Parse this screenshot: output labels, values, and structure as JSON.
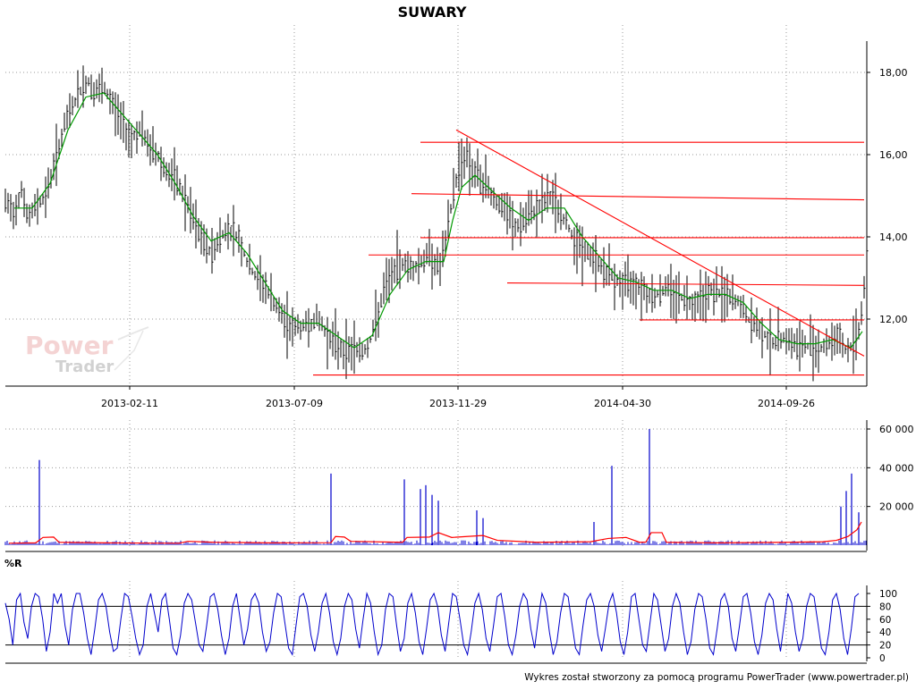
{
  "chart_data": [
    {
      "type": "line",
      "title": "SUWARY",
      "subtype": "candlestick-with-moving-average",
      "x_tick_labels": [
        "2013-02-11",
        "2013-07-09",
        "2013-11-29",
        "2014-04-30",
        "2014-09-26"
      ],
      "y_tick_labels": [
        "12,00",
        "14,00",
        "16,00",
        "18,00"
      ],
      "y_ticks": [
        12,
        14,
        16,
        18
      ],
      "ylim": [
        10.3,
        18.8
      ],
      "grid": true,
      "colors": {
        "price": "#000000",
        "moving_average": "#009900",
        "trendlines": "#ff0000"
      },
      "price_path": [
        [
          0,
          14.8
        ],
        [
          10,
          14.6
        ],
        [
          18,
          15.2
        ],
        [
          25,
          14.4
        ],
        [
          35,
          14.8
        ],
        [
          45,
          15.0
        ],
        [
          55,
          15.8
        ],
        [
          65,
          16.6
        ],
        [
          75,
          17.2
        ],
        [
          85,
          17.6
        ],
        [
          92,
          17.8
        ],
        [
          100,
          17.5
        ],
        [
          110,
          17.6
        ],
        [
          120,
          17.2
        ],
        [
          130,
          16.8
        ],
        [
          140,
          16.4
        ],
        [
          150,
          16.6
        ],
        [
          160,
          16.2
        ],
        [
          170,
          16.0
        ],
        [
          180,
          15.6
        ],
        [
          195,
          15.2
        ],
        [
          210,
          14.4
        ],
        [
          220,
          13.9
        ],
        [
          230,
          13.6
        ],
        [
          240,
          14.0
        ],
        [
          250,
          14.2
        ],
        [
          260,
          14.0
        ],
        [
          270,
          13.4
        ],
        [
          280,
          13.0
        ],
        [
          290,
          12.8
        ],
        [
          300,
          12.4
        ],
        [
          310,
          12.0
        ],
        [
          320,
          11.8
        ],
        [
          330,
          11.8
        ],
        [
          340,
          11.9
        ],
        [
          350,
          12.0
        ],
        [
          360,
          11.6
        ],
        [
          370,
          11.4
        ],
        [
          380,
          11.2
        ],
        [
          390,
          11.3
        ],
        [
          400,
          11.2
        ],
        [
          408,
          11.5
        ],
        [
          415,
          12.0
        ],
        [
          425,
          12.8
        ],
        [
          435,
          13.2
        ],
        [
          445,
          13.4
        ],
        [
          455,
          13.2
        ],
        [
          465,
          13.4
        ],
        [
          475,
          13.6
        ],
        [
          485,
          13.2
        ],
        [
          492,
          13.8
        ],
        [
          500,
          15.0
        ],
        [
          508,
          15.8
        ],
        [
          515,
          16.0
        ],
        [
          522,
          15.6
        ],
        [
          530,
          15.4
        ],
        [
          540,
          15.2
        ],
        [
          550,
          14.8
        ],
        [
          560,
          14.6
        ],
        [
          570,
          14.2
        ],
        [
          580,
          14.4
        ],
        [
          590,
          14.6
        ],
        [
          600,
          14.8
        ],
        [
          610,
          15.0
        ],
        [
          620,
          14.6
        ],
        [
          630,
          14.2
        ],
        [
          640,
          13.8
        ],
        [
          650,
          13.6
        ],
        [
          660,
          13.4
        ],
        [
          670,
          13.2
        ],
        [
          680,
          13.0
        ],
        [
          690,
          12.8
        ],
        [
          700,
          12.9
        ],
        [
          710,
          12.8
        ],
        [
          720,
          12.6
        ],
        [
          730,
          12.6
        ],
        [
          740,
          12.8
        ],
        [
          750,
          12.6
        ],
        [
          760,
          12.5
        ],
        [
          770,
          12.4
        ],
        [
          780,
          12.6
        ],
        [
          790,
          12.7
        ],
        [
          800,
          12.6
        ],
        [
          810,
          12.5
        ],
        [
          820,
          12.4
        ],
        [
          830,
          12.0
        ],
        [
          840,
          11.8
        ],
        [
          850,
          11.6
        ],
        [
          860,
          11.4
        ],
        [
          870,
          11.6
        ],
        [
          880,
          11.4
        ],
        [
          890,
          11.3
        ],
        [
          900,
          11.4
        ],
        [
          910,
          11.3
        ],
        [
          920,
          11.4
        ],
        [
          930,
          11.6
        ],
        [
          940,
          11.2
        ],
        [
          948,
          11.4
        ],
        [
          955,
          11.8
        ],
        [
          960,
          12.8
        ],
        [
          963,
          13.6
        ]
      ],
      "moving_average_path": [
        [
          10,
          14.7
        ],
        [
          30,
          14.7
        ],
        [
          50,
          15.3
        ],
        [
          70,
          16.6
        ],
        [
          90,
          17.4
        ],
        [
          110,
          17.5
        ],
        [
          130,
          17.0
        ],
        [
          150,
          16.5
        ],
        [
          170,
          16.0
        ],
        [
          190,
          15.3
        ],
        [
          210,
          14.5
        ],
        [
          230,
          13.9
        ],
        [
          250,
          14.1
        ],
        [
          270,
          13.6
        ],
        [
          290,
          12.9
        ],
        [
          310,
          12.2
        ],
        [
          330,
          11.9
        ],
        [
          350,
          11.9
        ],
        [
          370,
          11.6
        ],
        [
          390,
          11.3
        ],
        [
          410,
          11.6
        ],
        [
          430,
          12.6
        ],
        [
          450,
          13.2
        ],
        [
          470,
          13.4
        ],
        [
          490,
          13.4
        ],
        [
          500,
          14.4
        ],
        [
          510,
          15.2
        ],
        [
          525,
          15.5
        ],
        [
          545,
          15.1
        ],
        [
          565,
          14.7
        ],
        [
          585,
          14.4
        ],
        [
          605,
          14.7
        ],
        [
          625,
          14.7
        ],
        [
          645,
          14.0
        ],
        [
          665,
          13.5
        ],
        [
          685,
          13.0
        ],
        [
          705,
          12.9
        ],
        [
          725,
          12.7
        ],
        [
          745,
          12.7
        ],
        [
          765,
          12.5
        ],
        [
          785,
          12.6
        ],
        [
          805,
          12.6
        ],
        [
          825,
          12.4
        ],
        [
          845,
          11.9
        ],
        [
          865,
          11.5
        ],
        [
          885,
          11.4
        ],
        [
          905,
          11.4
        ],
        [
          925,
          11.5
        ],
        [
          945,
          11.3
        ],
        [
          958,
          11.7
        ]
      ],
      "trendlines": [
        {
          "from": [
            470,
            16.3
          ],
          "to": [
            966,
            16.3
          ]
        },
        {
          "from": [
            460,
            15.05
          ],
          "to": [
            966,
            14.9
          ]
        },
        {
          "from": [
            470,
            13.98
          ],
          "to": [
            966,
            13.98
          ]
        },
        {
          "from": [
            412,
            13.56
          ],
          "to": [
            966,
            13.56
          ]
        },
        {
          "from": [
            567,
            12.88
          ],
          "to": [
            966,
            12.82
          ]
        },
        {
          "from": [
            715,
            11.98
          ],
          "to": [
            966,
            11.98
          ]
        },
        {
          "from": [
            350,
            10.64
          ],
          "to": [
            966,
            10.64
          ]
        },
        {
          "from": [
            510,
            16.6
          ],
          "to": [
            966,
            11.1
          ]
        }
      ]
    },
    {
      "type": "bar",
      "name": "volume",
      "y_tick_labels": [
        "20 000",
        "40 000",
        "60 000"
      ],
      "y_ticks": [
        20000,
        40000,
        60000
      ],
      "ylim": [
        0,
        60000
      ],
      "grid": true,
      "colors": {
        "bars": "#0000cc",
        "average": "#ff0000"
      },
      "spikes": [
        [
          44,
          44000
        ],
        [
          370,
          37000
        ],
        [
          452,
          34000
        ],
        [
          470,
          29000
        ],
        [
          476,
          31000
        ],
        [
          483,
          26000
        ],
        [
          490,
          23000
        ],
        [
          533,
          18000
        ],
        [
          540,
          14000
        ],
        [
          664,
          12000
        ],
        [
          684,
          41000
        ],
        [
          726,
          60000
        ],
        [
          940,
          20000
        ],
        [
          946,
          28000
        ],
        [
          952,
          37000
        ],
        [
          960,
          17000
        ]
      ],
      "average_path": [
        [
          10,
          1000
        ],
        [
          40,
          1200
        ],
        [
          48,
          4000
        ],
        [
          60,
          4200
        ],
        [
          66,
          1500
        ],
        [
          120,
          1200
        ],
        [
          200,
          1000
        ],
        [
          210,
          2000
        ],
        [
          240,
          1500
        ],
        [
          300,
          1200
        ],
        [
          370,
          1300
        ],
        [
          375,
          4500
        ],
        [
          385,
          4200
        ],
        [
          392,
          2000
        ],
        [
          450,
          1500
        ],
        [
          455,
          4000
        ],
        [
          480,
          4200
        ],
        [
          490,
          6500
        ],
        [
          505,
          4000
        ],
        [
          540,
          5000
        ],
        [
          556,
          2500
        ],
        [
          600,
          1500
        ],
        [
          660,
          1800
        ],
        [
          680,
          3500
        ],
        [
          700,
          4000
        ],
        [
          715,
          1500
        ],
        [
          722,
          1600
        ],
        [
          728,
          6500
        ],
        [
          740,
          6500
        ],
        [
          745,
          1500
        ],
        [
          800,
          1200
        ],
        [
          880,
          1500
        ],
        [
          920,
          1800
        ],
        [
          935,
          2500
        ],
        [
          948,
          4500
        ],
        [
          958,
          8000
        ],
        [
          963,
          12000
        ]
      ]
    },
    {
      "type": "line",
      "name": "%R",
      "title": "%R",
      "y_tick_labels": [
        "0",
        "20",
        "40",
        "60",
        "80",
        "100"
      ],
      "y_ticks": [
        0,
        20,
        40,
        60,
        80,
        100
      ],
      "ylim": [
        0,
        100
      ],
      "reference_lines": [
        20,
        80
      ],
      "colors": {
        "line": "#0000cc"
      },
      "values": [
        85,
        60,
        20,
        90,
        100,
        55,
        30,
        80,
        100,
        95,
        60,
        10,
        40,
        100,
        85,
        100,
        50,
        20,
        75,
        100,
        100,
        70,
        30,
        5,
        45,
        90,
        100,
        80,
        40,
        10,
        15,
        60,
        100,
        95,
        65,
        30,
        5,
        20,
        80,
        100,
        70,
        40,
        90,
        100,
        60,
        15,
        5,
        35,
        85,
        100,
        90,
        55,
        20,
        10,
        50,
        95,
        100,
        75,
        35,
        5,
        30,
        80,
        100,
        60,
        20,
        45,
        90,
        100,
        85,
        40,
        10,
        25,
        70,
        100,
        95,
        55,
        15,
        5,
        50,
        95,
        100,
        80,
        35,
        10,
        40,
        85,
        100,
        70,
        25,
        5,
        30,
        80,
        100,
        90,
        45,
        15,
        60,
        100,
        85,
        40,
        5,
        20,
        75,
        100,
        95,
        50,
        10,
        30,
        85,
        100,
        70,
        25,
        5,
        45,
        90,
        100,
        80,
        35,
        10,
        55,
        100,
        95,
        60,
        20,
        5,
        40,
        85,
        100,
        75,
        30,
        10,
        50,
        95,
        100,
        65,
        20,
        5,
        35,
        80,
        100,
        90,
        45,
        15,
        60,
        100,
        85,
        40,
        5,
        25,
        70,
        100,
        95,
        55,
        15,
        5,
        50,
        90,
        100,
        80,
        35,
        10,
        45,
        85,
        100,
        70,
        25,
        5,
        40,
        95,
        100,
        60,
        20,
        10,
        55,
        100,
        90,
        50,
        10,
        30,
        80,
        100,
        85,
        40,
        5,
        25,
        75,
        100,
        95,
        60,
        15,
        5,
        45,
        90,
        100,
        80,
        30,
        10,
        50,
        95,
        100,
        70,
        25,
        5,
        35,
        85,
        100,
        90,
        45,
        10,
        55,
        100,
        85,
        40,
        10,
        30,
        80,
        100,
        95,
        55,
        15,
        5,
        40,
        90,
        100,
        75,
        30,
        5,
        45,
        95,
        100
      ]
    }
  ],
  "logo": {
    "word1": "Power",
    "word2": "Trader"
  },
  "footer": {
    "credit": "Wykres został stworzony za pomocą programu PowerTrader (www.powertrader.pl)"
  }
}
